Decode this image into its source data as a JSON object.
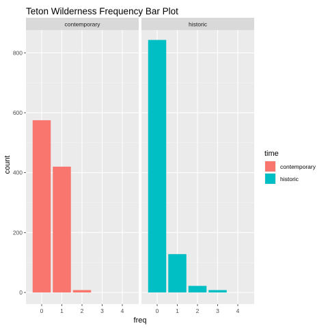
{
  "chart_data": {
    "type": "bar",
    "title": "Teton Wilderness Frequency Bar Plot",
    "xlabel": "freq",
    "ylabel": "count",
    "categories": [
      0,
      1,
      2,
      3,
      4
    ],
    "ylim": [
      0,
      880
    ],
    "yticks": [
      0,
      200,
      400,
      600,
      800
    ],
    "grid": true,
    "facets": [
      {
        "label": "contemporary",
        "series": "contemporary",
        "values": [
          575,
          420,
          8,
          0,
          0
        ]
      },
      {
        "label": "historic",
        "series": "historic",
        "values": [
          843,
          128,
          22,
          8,
          0
        ]
      }
    ],
    "legend": {
      "title": "time",
      "position": "right",
      "entries": [
        {
          "name": "contemporary",
          "color": "#F8766D"
        },
        {
          "name": "historic",
          "color": "#00BFC4"
        }
      ]
    }
  }
}
